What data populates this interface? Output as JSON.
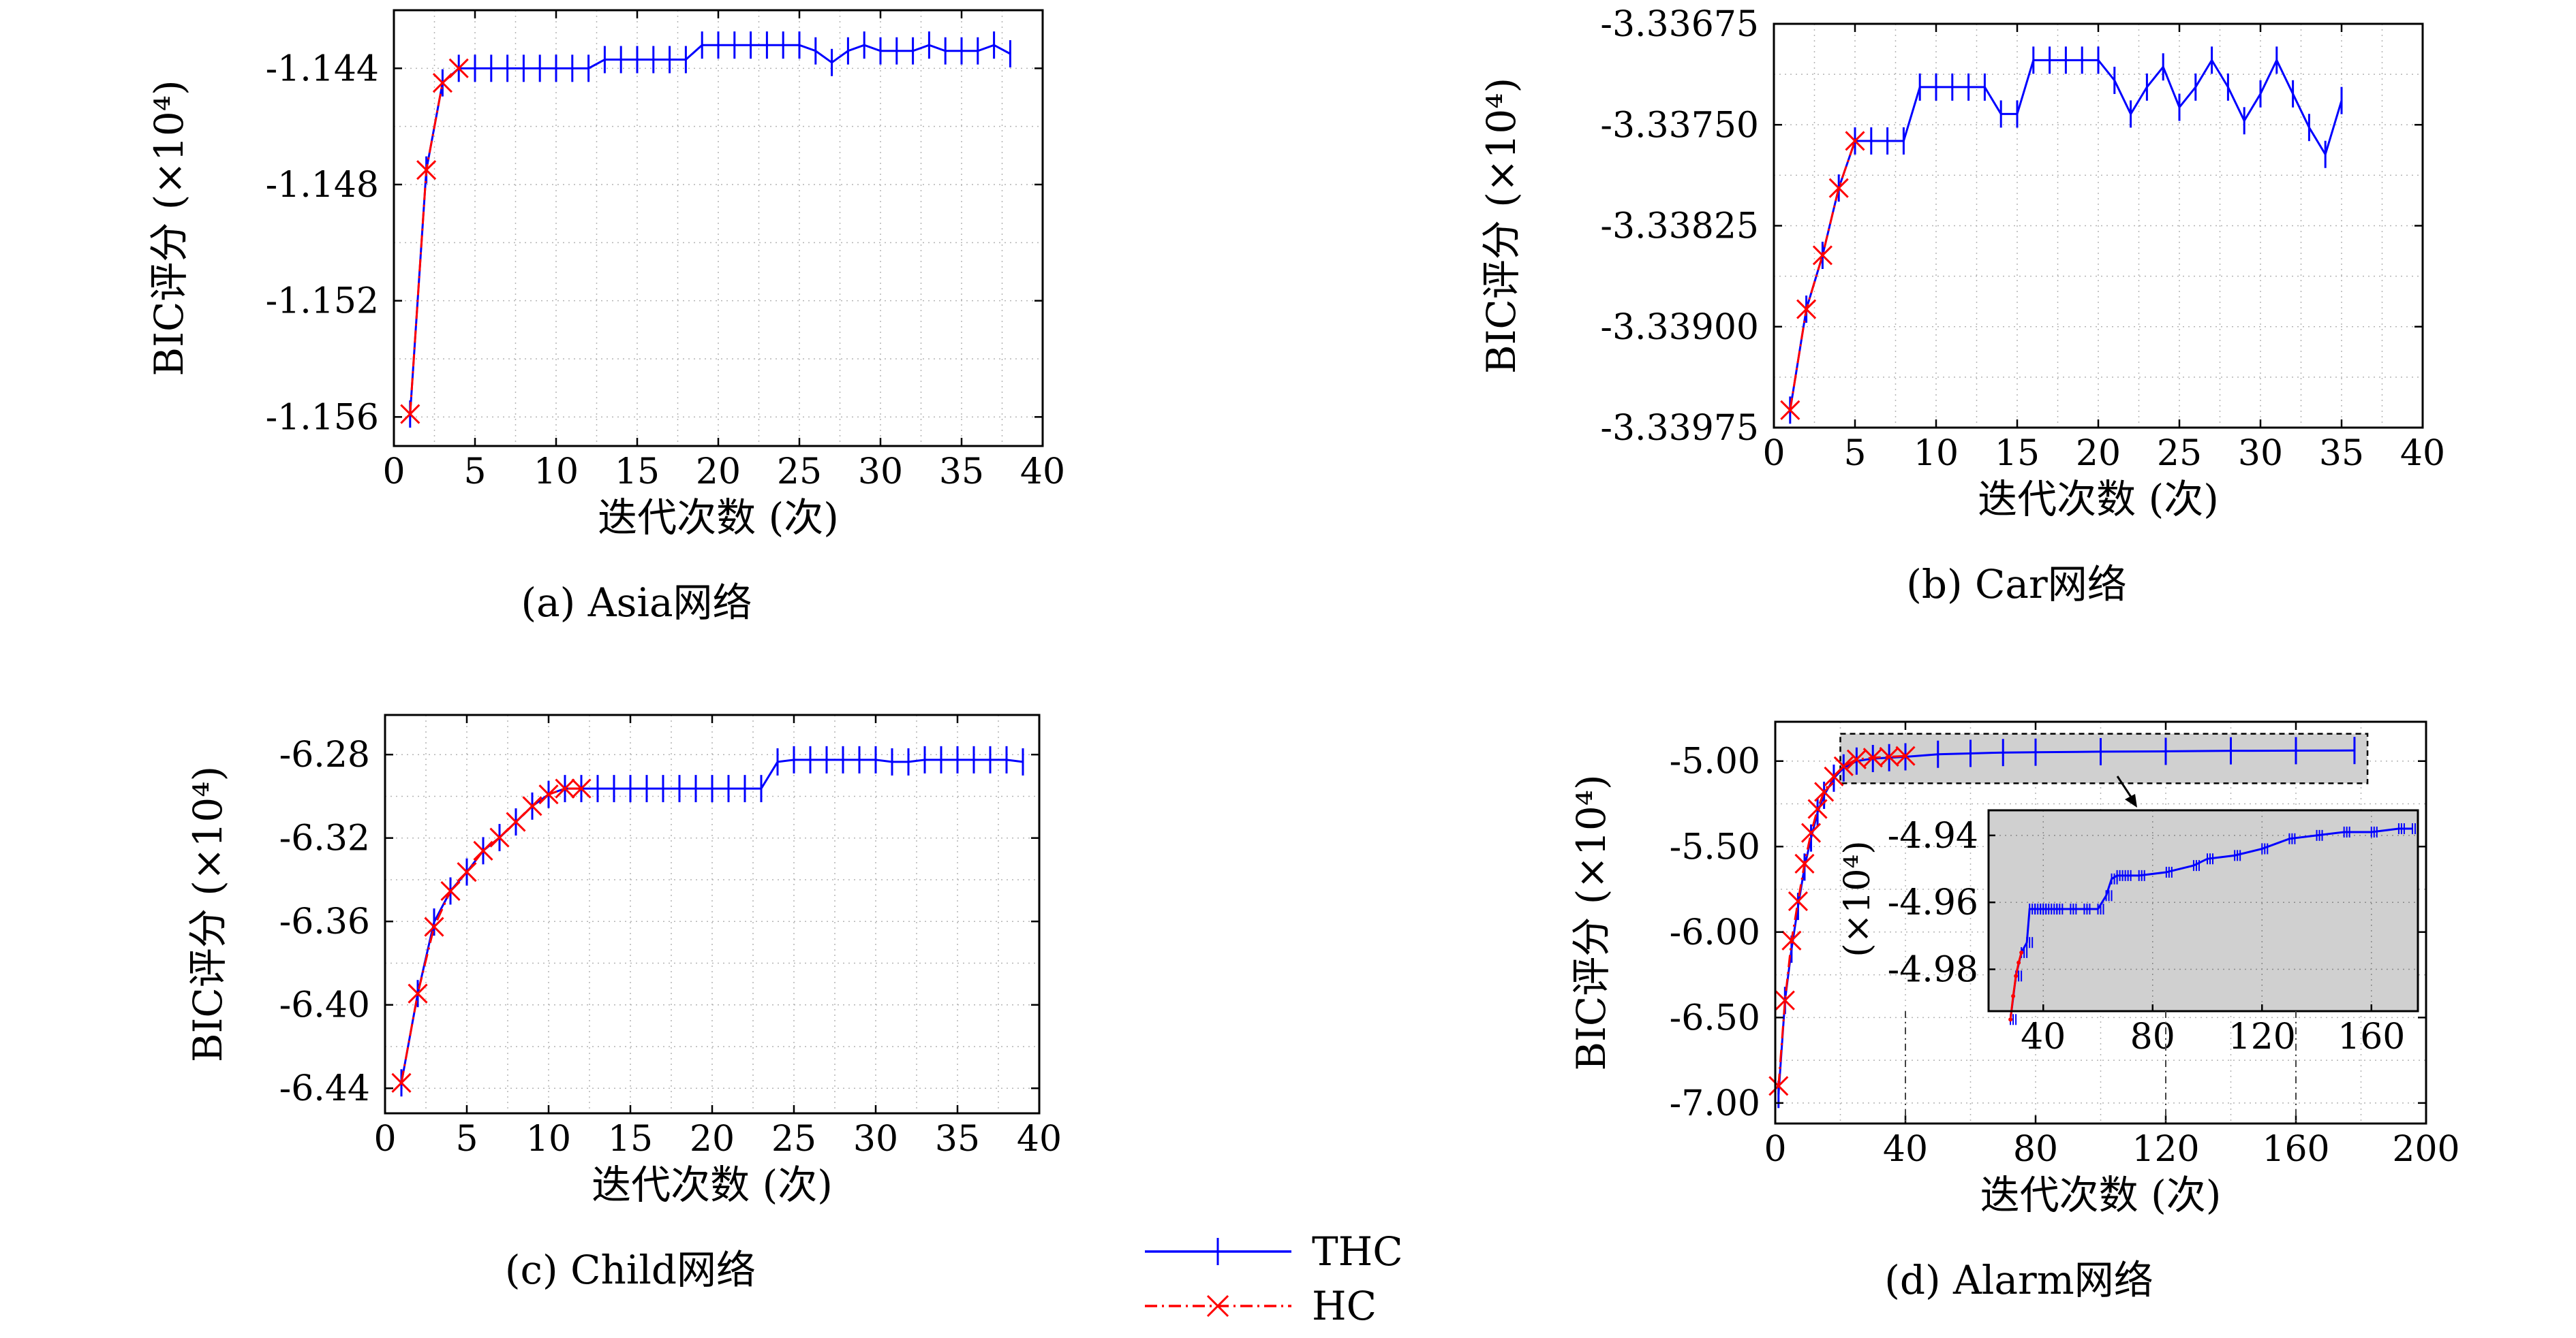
{
  "legend": {
    "entries": [
      {
        "name": "THC",
        "color": "#0000ff",
        "marker": "vbar",
        "dash": "solid"
      },
      {
        "name": "HC",
        "color": "#ff0000",
        "marker": "cross",
        "dash": "dashdot"
      }
    ]
  },
  "chart_data": [
    {
      "id": "a",
      "type": "line",
      "caption": "(a) Asia网络",
      "xlabel": "迭代次数 (次)",
      "ylabel": "BIC评分 (×10⁴)",
      "xlim": [
        0,
        40
      ],
      "ylim": [
        -1.157,
        -1.142
      ],
      "xticks": [
        0,
        5,
        10,
        15,
        20,
        25,
        30,
        35,
        40
      ],
      "yticks": [
        -1.144,
        -1.148,
        -1.152,
        -1.156
      ],
      "ytick_labels": [
        "-1.144",
        "-1.148",
        "-1.152",
        "-1.156"
      ],
      "grid": true,
      "series": [
        {
          "name": "THC",
          "color": "#0000ff",
          "marker": "vbar",
          "dash": "solid",
          "x": [
            1,
            2,
            3,
            4,
            5,
            6,
            7,
            8,
            9,
            10,
            11,
            12,
            13,
            14,
            15,
            16,
            17,
            18,
            19,
            20,
            21,
            22,
            23,
            24,
            25,
            26,
            27,
            28,
            29,
            30,
            31,
            32,
            33,
            34,
            35,
            36,
            37,
            38
          ],
          "y": [
            -1.1559,
            -1.1475,
            -1.1445,
            -1.144,
            -1.144,
            -1.144,
            -1.144,
            -1.144,
            -1.144,
            -1.144,
            -1.144,
            -1.144,
            -1.1437,
            -1.1437,
            -1.1437,
            -1.1437,
            -1.1437,
            -1.1437,
            -1.1432,
            -1.1432,
            -1.1432,
            -1.1432,
            -1.1432,
            -1.1432,
            -1.1432,
            -1.1434,
            -1.1438,
            -1.1434,
            -1.1432,
            -1.1434,
            -1.1434,
            -1.1434,
            -1.1432,
            -1.1434,
            -1.1434,
            -1.1434,
            -1.1432,
            -1.1435
          ]
        },
        {
          "name": "HC",
          "color": "#ff0000",
          "marker": "cross",
          "dash": "dashdot",
          "x": [
            1,
            2,
            3,
            4
          ],
          "y": [
            -1.1559,
            -1.1475,
            -1.1445,
            -1.144
          ]
        }
      ]
    },
    {
      "id": "b",
      "type": "line",
      "caption": "(b) Car网络",
      "xlabel": "迭代次数 (次)",
      "ylabel": "BIC评分 (×10⁴)",
      "xlim": [
        0,
        40
      ],
      "ylim": [
        -3.33975,
        -3.33675
      ],
      "xticks": [
        0,
        5,
        10,
        15,
        20,
        25,
        30,
        35,
        40
      ],
      "yticks": [
        -3.33675,
        -3.3375,
        -3.33825,
        -3.339,
        -3.33975
      ],
      "ytick_labels": [
        "-3.33675",
        "-3.33750",
        "-3.33825",
        "-3.33900",
        "-3.33975"
      ],
      "grid": true,
      "series": [
        {
          "name": "THC",
          "color": "#0000ff",
          "marker": "vbar",
          "dash": "solid",
          "x": [
            1,
            2,
            3,
            4,
            5,
            6,
            7,
            8,
            9,
            10,
            11,
            12,
            13,
            14,
            15,
            16,
            17,
            18,
            19,
            20,
            21,
            22,
            23,
            24,
            25,
            26,
            27,
            28,
            29,
            30,
            31,
            32,
            33,
            34,
            35
          ],
          "y": [
            -3.33962,
            -3.33887,
            -3.33847,
            -3.33797,
            -3.33762,
            -3.33762,
            -3.33762,
            -3.33762,
            -3.33722,
            -3.33722,
            -3.33722,
            -3.33722,
            -3.33722,
            -3.33742,
            -3.33742,
            -3.33702,
            -3.33702,
            -3.33702,
            -3.33702,
            -3.33702,
            -3.33717,
            -3.33742,
            -3.33722,
            -3.33707,
            -3.33737,
            -3.33722,
            -3.33702,
            -3.33722,
            -3.33747,
            -3.33727,
            -3.33702,
            -3.33727,
            -3.33752,
            -3.33772,
            -3.33732
          ]
        },
        {
          "name": "HC",
          "color": "#ff0000",
          "marker": "cross",
          "dash": "dashdot",
          "x": [
            1,
            2,
            3,
            4,
            5
          ],
          "y": [
            -3.33962,
            -3.33887,
            -3.33847,
            -3.33797,
            -3.33762
          ]
        }
      ]
    },
    {
      "id": "c",
      "type": "line",
      "caption": "(c) Child网络",
      "xlabel": "迭代次数 (次)",
      "ylabel": "BIC评分 (×10⁴)",
      "xlim": [
        0,
        40
      ],
      "ylim": [
        -6.452,
        -6.261
      ],
      "xticks": [
        0,
        5,
        10,
        15,
        20,
        25,
        30,
        35,
        40
      ],
      "yticks": [
        -6.28,
        -6.32,
        -6.36,
        -6.4,
        -6.44
      ],
      "ytick_labels": [
        "-6.28",
        "-6.32",
        "-6.36",
        "-6.40",
        "-6.44"
      ],
      "grid": true,
      "series": [
        {
          "name": "THC",
          "color": "#0000ff",
          "marker": "vbar",
          "dash": "solid",
          "x": [
            1,
            2,
            3,
            4,
            5,
            6,
            7,
            8,
            9,
            10,
            11,
            12,
            13,
            14,
            15,
            16,
            17,
            18,
            19,
            20,
            21,
            22,
            23,
            24,
            25,
            26,
            27,
            28,
            29,
            30,
            31,
            32,
            33,
            34,
            35,
            36,
            37,
            38,
            39
          ],
          "y": [
            -6.4374,
            -6.3946,
            -6.3603,
            -6.3454,
            -6.3363,
            -6.3261,
            -6.3198,
            -6.3123,
            -6.3047,
            -6.2991,
            -6.2963,
            -6.2963,
            -6.2963,
            -6.2963,
            -6.2963,
            -6.2963,
            -6.2963,
            -6.2963,
            -6.2963,
            -6.2963,
            -6.2963,
            -6.2963,
            -6.2963,
            -6.2835,
            -6.2825,
            -6.2825,
            -6.2825,
            -6.2825,
            -6.2825,
            -6.2825,
            -6.2835,
            -6.2835,
            -6.2825,
            -6.2825,
            -6.2825,
            -6.2825,
            -6.2825,
            -6.2825,
            -6.2835
          ]
        },
        {
          "name": "HC",
          "color": "#ff0000",
          "marker": "cross",
          "dash": "dashdot",
          "x": [
            1,
            2,
            3,
            4,
            5,
            6,
            7,
            8,
            9,
            10,
            11,
            12
          ],
          "y": [
            -6.4374,
            -6.3946,
            -6.3626,
            -6.3454,
            -6.3363,
            -6.3261,
            -6.3198,
            -6.3123,
            -6.3047,
            -6.2991,
            -6.2963,
            -6.2963
          ]
        }
      ]
    },
    {
      "id": "d",
      "type": "line",
      "caption": "(d) Alarm网络",
      "xlabel": "迭代次数 (次)",
      "ylabel": "BIC评分 (×10⁴)",
      "xlim": [
        0,
        200
      ],
      "ylim": [
        -7.12,
        -4.77
      ],
      "xticks": [
        0,
        40,
        80,
        120,
        160,
        200
      ],
      "yticks": [
        -5.0,
        -5.5,
        -6.0,
        -6.5,
        -7.0
      ],
      "ytick_labels": [
        "-5.00",
        "-5.50",
        "-6.00",
        "-6.50",
        "-7.00"
      ],
      "grid": true,
      "zoom_region": {
        "xlim": [
          20,
          182
        ],
        "ylim": [
          -5.13,
          -4.84
        ]
      },
      "series": [
        {
          "name": "THC",
          "color": "#0000ff",
          "marker": "vbar",
          "dash": "solid",
          "x": [
            1,
            3,
            5,
            7,
            9,
            11,
            13,
            15,
            18,
            21,
            25,
            30,
            35,
            40,
            50,
            60,
            70,
            80,
            100,
            120,
            140,
            160,
            178
          ],
          "y": [
            -6.95,
            -6.4,
            -6.1,
            -5.85,
            -5.62,
            -5.45,
            -5.3,
            -5.2,
            -5.1,
            -5.04,
            -5.0,
            -4.985,
            -4.98,
            -4.975,
            -4.96,
            -4.955,
            -4.95,
            -4.948,
            -4.945,
            -4.943,
            -4.94,
            -4.939,
            -4.938
          ]
        },
        {
          "name": "HC",
          "color": "#ff0000",
          "marker": "cross",
          "dash": "dashdot",
          "x": [
            1,
            3,
            5,
            7,
            9,
            11,
            13,
            15,
            18,
            21,
            25,
            30,
            35,
            40
          ],
          "y": [
            -6.9,
            -6.4,
            -6.05,
            -5.82,
            -5.6,
            -5.42,
            -5.28,
            -5.18,
            -5.09,
            -5.03,
            -4.99,
            -4.98,
            -4.975,
            -4.97
          ]
        }
      ],
      "inset": {
        "ylabel": "(×10⁴)",
        "xlim": [
          20,
          177
        ],
        "ylim": [
          -4.9925,
          -4.9325
        ],
        "xticks": [
          40,
          80,
          120,
          160
        ],
        "yticks": [
          -4.94,
          -4.96,
          -4.98
        ],
        "ytick_labels": [
          "-4.94",
          "-4.96",
          "-4.98"
        ],
        "series": [
          {
            "name": "THC",
            "color": "#0000ff",
            "x": [
              28,
              30,
              32,
              34,
              35,
              37,
              39,
              40,
              43,
              45,
              50,
              55,
              60,
              63,
              65,
              67,
              70,
              75,
              85,
              95,
              100,
              110,
              120,
              130,
              140,
              150,
              160,
              170,
              175
            ],
            "y": [
              -4.995,
              -4.982,
              -4.975,
              -4.972,
              -4.962,
              -4.962,
              -4.962,
              -4.962,
              -4.962,
              -4.962,
              -4.962,
              -4.962,
              -4.962,
              -4.958,
              -4.953,
              -4.952,
              -4.952,
              -4.952,
              -4.951,
              -4.949,
              -4.947,
              -4.946,
              -4.944,
              -4.941,
              -4.94,
              -4.939,
              -4.939,
              -4.938,
              -4.938
            ]
          },
          {
            "name": "HC",
            "color": "#ff0000",
            "x": [
              28,
              29,
              30,
              31,
              32
            ],
            "y": [
              -4.995,
              -4.988,
              -4.982,
              -4.978,
              -4.975
            ]
          }
        ]
      }
    }
  ]
}
